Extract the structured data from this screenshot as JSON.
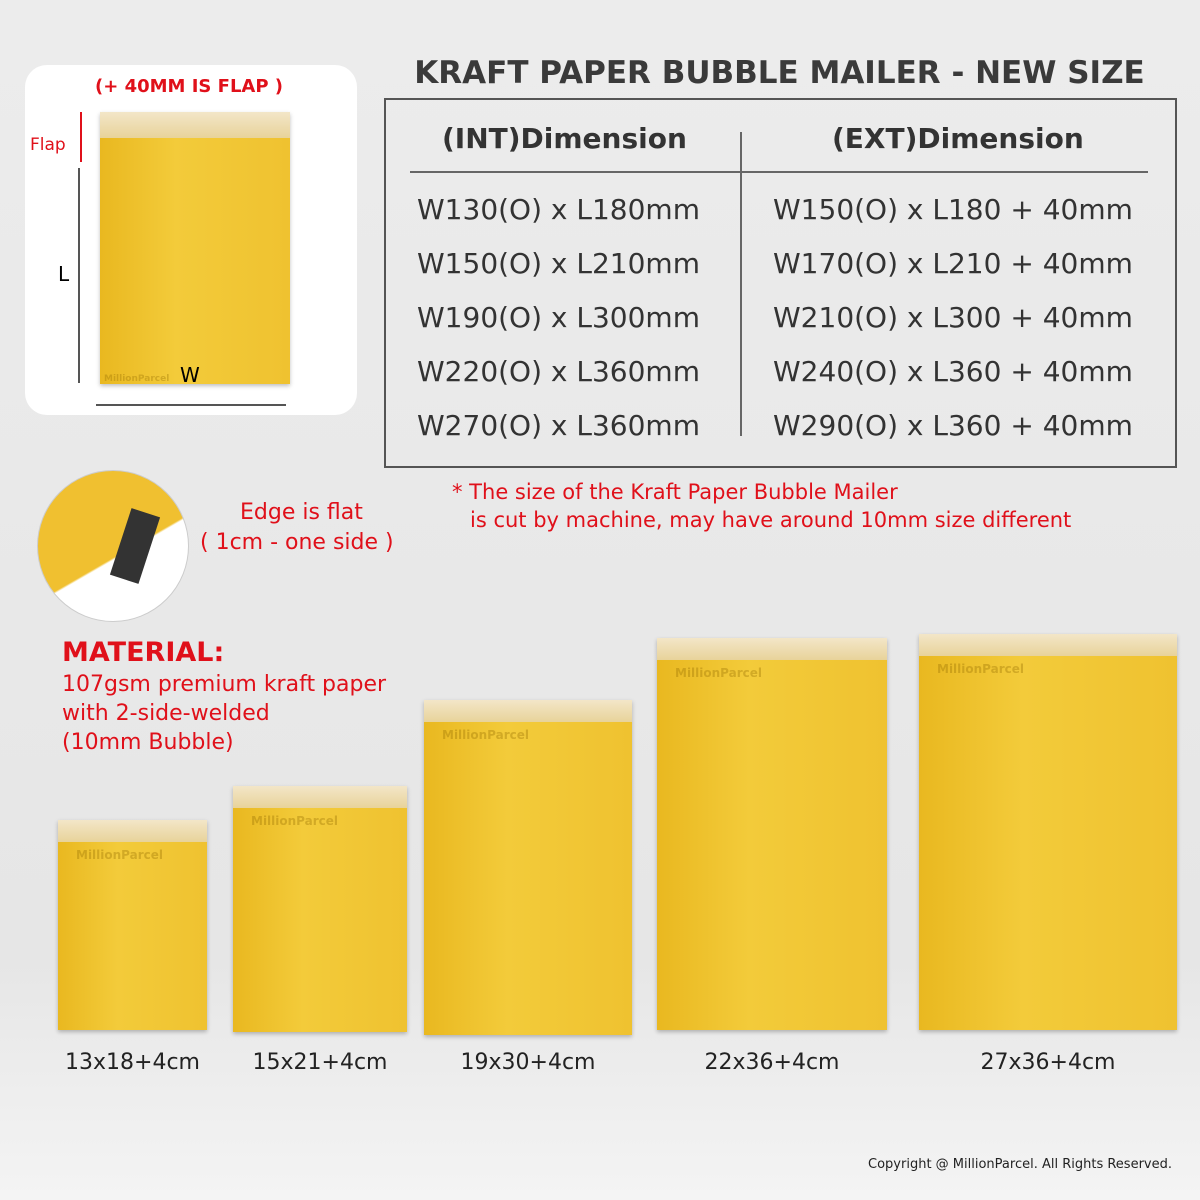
{
  "diagram": {
    "flap_note": "(+ 40MM IS FLAP )",
    "flap_label": "Flap",
    "l_label": "L",
    "w_label": "W"
  },
  "brand": "MillionParcel",
  "title": "KRAFT PAPER BUBBLE MAILER - NEW SIZE",
  "table": {
    "headers": [
      "(INT)Dimension",
      "(EXT)Dimension"
    ],
    "rows": [
      [
        "W130(O) x L180mm",
        "W150(O) x L180 + 40mm"
      ],
      [
        "W150(O) x L210mm",
        "W170(O) x L210 + 40mm"
      ],
      [
        "W190(O) x L300mm",
        "W210(O) x L300 + 40mm"
      ],
      [
        "W220(O) x L360mm",
        "W240(O) x L360 + 40mm"
      ],
      [
        "W270(O) x L360mm",
        "W290(O) x L360 + 40mm"
      ]
    ]
  },
  "edge_note": {
    "line1": "Edge is flat",
    "line2": "( 1cm - one side )"
  },
  "size_note": {
    "line1": "* The size of the Kraft Paper Bubble Mailer",
    "line2": "is cut by machine, may have around 10mm size different"
  },
  "material": {
    "heading": "MATERIAL:",
    "lines": [
      "107gsm premium kraft paper",
      "with 2-side-welded",
      "(10mm Bubble)"
    ]
  },
  "mailers": [
    "13x18+4cm",
    "15x21+4cm",
    "19x30+4cm",
    "22x36+4cm",
    "27x36+4cm"
  ],
  "copyright": "Copyright @ MillionParcel. All Rights Reserved."
}
